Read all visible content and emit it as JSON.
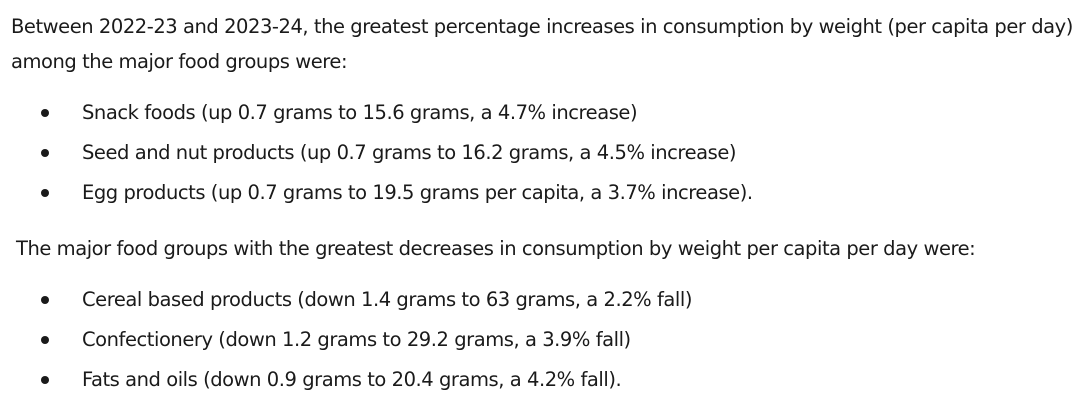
{
  "intro": "Between 2022-23 and 2023-24, the greatest percentage increases in consumption by weight (per capita per day) among the major food groups were:",
  "increases": [
    "Snack foods (up 0.7 grams to 15.6 grams, a 4.7% increase)",
    "Seed and nut products (up 0.7 grams to 16.2 grams, a 4.5% increase)",
    "Egg products (up 0.7 grams to 19.5 grams per capita, a 3.7% increase)."
  ],
  "decreases_intro": "The major food groups with the greatest decreases in consumption by weight per capita per day were:",
  "decreases": [
    "Cereal based products (down 1.4 grams to 63 grams, a 2.2% fall)",
    "Confectionery (down 1.2 grams to 29.2 grams, a 3.9% fall)",
    "Fats and oils (down 0.9 grams to 20.4 grams, a 4.2% fall)."
  ]
}
